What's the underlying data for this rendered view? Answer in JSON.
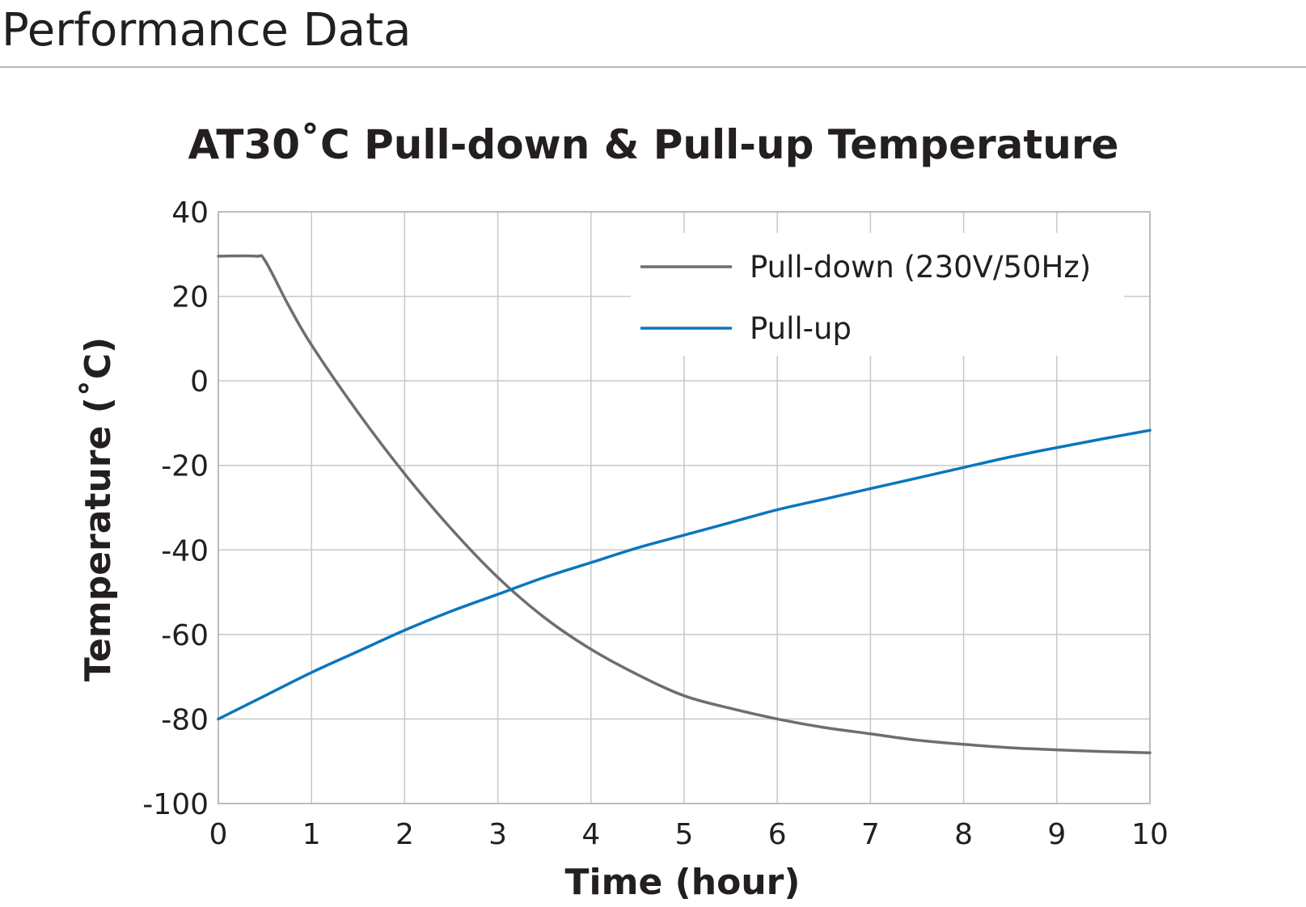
{
  "page": {
    "title": "Performance Data"
  },
  "chart_data": {
    "type": "line",
    "title": "AT30˚C Pull-down & Pull-up Temperature",
    "xlabel": "Time (hour)",
    "ylabel": "Temperature (˚C)",
    "xlim": [
      0,
      10
    ],
    "ylim": [
      -100,
      40
    ],
    "xticks": [
      "0",
      "1",
      "2",
      "3",
      "4",
      "5",
      "6",
      "7",
      "8",
      "9",
      "10"
    ],
    "yticks": [
      "40",
      "20",
      "0",
      "-20",
      "-40",
      "-60",
      "-80",
      "-100"
    ],
    "grid": true,
    "legend_position": "top-right",
    "series": [
      {
        "name": "Pull-down (230V/50Hz)",
        "color": "#6d6e70",
        "points": [
          [
            0,
            29.5
          ],
          [
            0.4,
            29.5
          ],
          [
            0.5,
            28.5
          ],
          [
            0.75,
            18
          ],
          [
            1,
            8.5
          ],
          [
            1.5,
            -7.5
          ],
          [
            2,
            -22
          ],
          [
            2.5,
            -35
          ],
          [
            3,
            -46.5
          ],
          [
            3.5,
            -56
          ],
          [
            4,
            -63.5
          ],
          [
            4.5,
            -69.5
          ],
          [
            5,
            -74.5
          ],
          [
            5.5,
            -77.5
          ],
          [
            6,
            -80
          ],
          [
            6.5,
            -82
          ],
          [
            7,
            -83.5
          ],
          [
            7.5,
            -85
          ],
          [
            8,
            -86
          ],
          [
            8.5,
            -86.8
          ],
          [
            9,
            -87.3
          ],
          [
            9.5,
            -87.7
          ],
          [
            10,
            -88
          ]
        ]
      },
      {
        "name": "Pull-up",
        "color": "#0b76be",
        "points": [
          [
            0,
            -80
          ],
          [
            0.5,
            -74.5
          ],
          [
            1,
            -69
          ],
          [
            1.5,
            -64
          ],
          [
            2,
            -59
          ],
          [
            2.5,
            -54.5
          ],
          [
            3,
            -50.5
          ],
          [
            3.5,
            -46.5
          ],
          [
            4,
            -43
          ],
          [
            4.5,
            -39.5
          ],
          [
            5,
            -36.5
          ],
          [
            5.5,
            -33.5
          ],
          [
            6,
            -30.5
          ],
          [
            6.5,
            -28
          ],
          [
            7,
            -25.5
          ],
          [
            7.5,
            -23
          ],
          [
            8,
            -20.5
          ],
          [
            8.5,
            -18
          ],
          [
            9,
            -15.8
          ],
          [
            9.5,
            -13.7
          ],
          [
            10,
            -11.7
          ]
        ]
      }
    ]
  }
}
